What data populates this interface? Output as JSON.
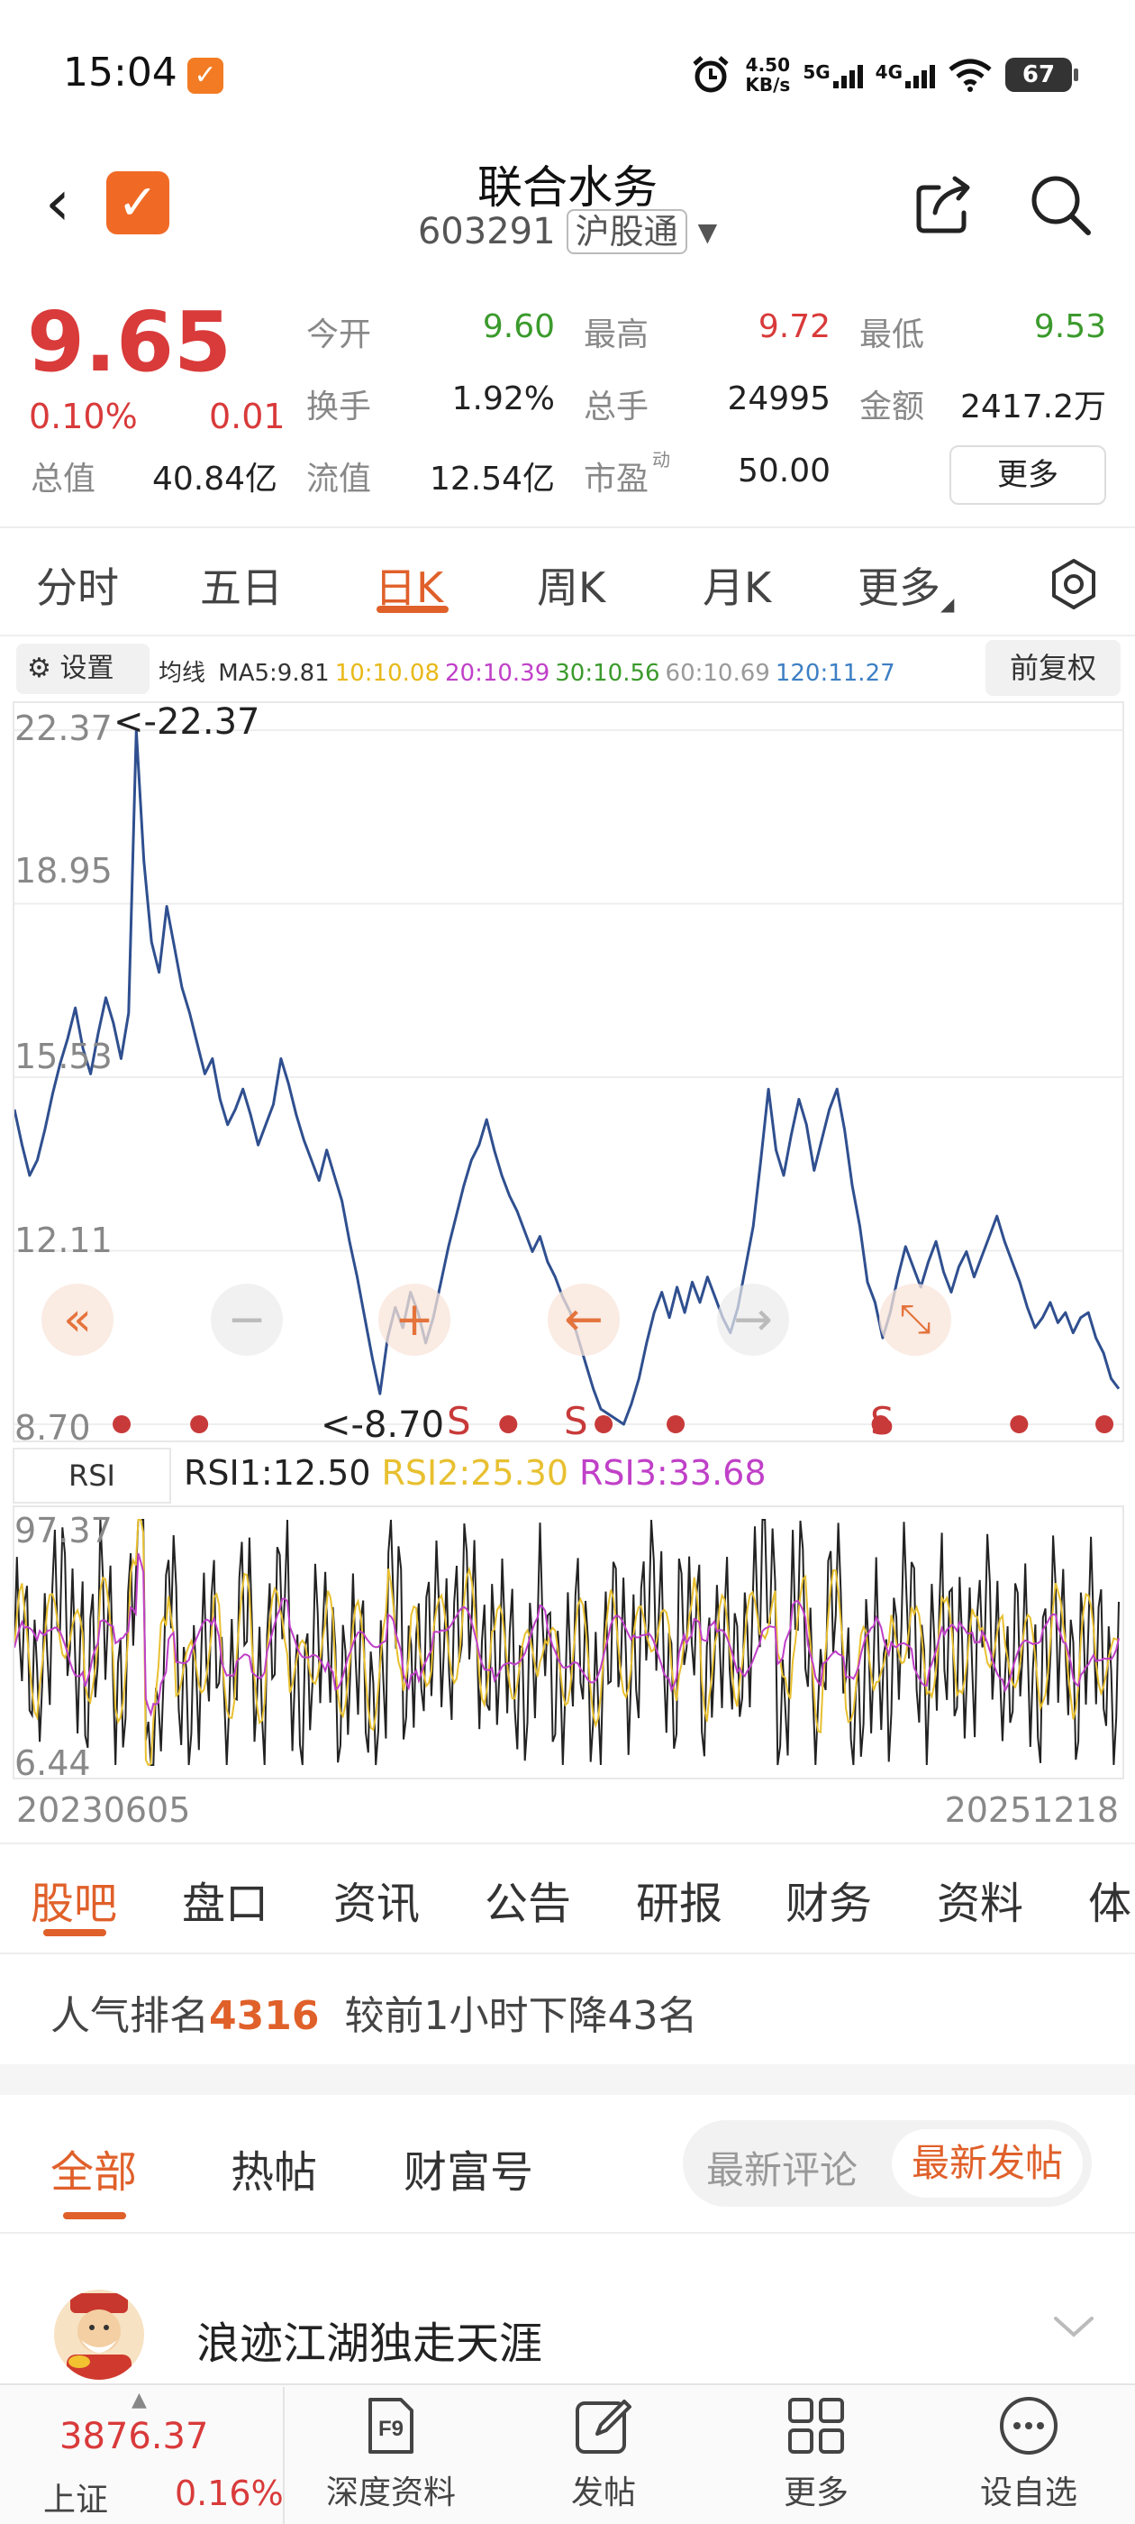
{
  "status_bar": {
    "time": "15:04",
    "net_speed": "4.50",
    "net_unit": "KB/s",
    "sim1": "5G",
    "sim2": "4G",
    "battery": "67",
    "app_icon": "check-icon"
  },
  "header": {
    "name": "联合水务",
    "code": "603291",
    "connect": "沪股通"
  },
  "quote": {
    "price": "9.65",
    "change_pct": "0.10%",
    "change_abs": "0.01",
    "total_value_label": "总值",
    "total_value": "40.84亿",
    "fields": [
      {
        "label": "今开",
        "value": "9.60",
        "color": "#3b9a2c"
      },
      {
        "label": "最高",
        "value": "9.72",
        "color": "#d93a3a"
      },
      {
        "label": "最低",
        "value": "9.53",
        "color": "#3b9a2c"
      },
      {
        "label": "换手",
        "value": "1.92%",
        "color": "#222222"
      },
      {
        "label": "总手",
        "value": "24995",
        "color": "#222222"
      },
      {
        "label": "金额",
        "value": "2417.2万",
        "color": "#222222"
      },
      {
        "label": "流值",
        "value": "12.54亿",
        "color": "#222222"
      },
      {
        "label": "市盈",
        "value": "50.00",
        "color": "#222222"
      }
    ],
    "pe_superscript": "动",
    "more_label": "更多"
  },
  "period_tabs": [
    "分时",
    "五日",
    "日K",
    "周K",
    "月K",
    "更多"
  ],
  "active_period": "日K",
  "indicator_bar": {
    "settings_label": "设置",
    "ma_title": "均线",
    "ma": [
      {
        "text": "MA5:9.81",
        "color": "#333333"
      },
      {
        "text": "10:10.08",
        "color": "#e8b818"
      },
      {
        "text": "20:10.39",
        "color": "#c040c8"
      },
      {
        "text": "30:10.56",
        "color": "#3b9a2c"
      },
      {
        "text": "60:10.69",
        "color": "#999999"
      },
      {
        "text": "120:11.27",
        "color": "#3d7fc4"
      }
    ],
    "adjust_label": "前复权"
  },
  "chart_data": [
    {
      "type": "line",
      "name": "price",
      "y_ticks": [
        "22.37",
        "18.95",
        "15.53",
        "12.11",
        "8.70"
      ],
      "ylim": [
        8.7,
        22.37
      ],
      "max_marker": "<-22.37",
      "min_marker": "<-8.70",
      "x_start": "20230605",
      "x_end": "20251218",
      "line_color": "#2f4f8f",
      "values": [
        14.9,
        14.2,
        13.6,
        13.9,
        14.5,
        15.2,
        15.8,
        16.3,
        16.9,
        16.1,
        15.6,
        16.4,
        17.1,
        16.6,
        15.9,
        16.8,
        22.37,
        19.8,
        18.2,
        17.6,
        18.9,
        18.1,
        17.3,
        16.8,
        16.2,
        15.6,
        15.9,
        15.1,
        14.6,
        14.9,
        15.3,
        14.8,
        14.2,
        14.6,
        15.0,
        15.9,
        15.4,
        14.8,
        14.3,
        13.9,
        13.5,
        14.1,
        13.6,
        13.1,
        12.3,
        11.6,
        10.8,
        10.0,
        9.3,
        10.4,
        11.0,
        10.6,
        11.3,
        10.9,
        10.3,
        10.8,
        11.5,
        12.2,
        12.8,
        13.4,
        13.9,
        14.2,
        14.7,
        14.1,
        13.6,
        13.2,
        12.9,
        12.5,
        12.1,
        12.4,
        11.9,
        11.6,
        11.2,
        10.9,
        10.4,
        9.9,
        9.4,
        9.0,
        8.9,
        8.8,
        8.7,
        9.1,
        9.6,
        10.3,
        10.9,
        11.3,
        10.8,
        11.4,
        10.9,
        11.5,
        11.1,
        11.6,
        11.2,
        10.8,
        10.5,
        11.0,
        11.8,
        12.6,
        13.9,
        15.3,
        14.1,
        13.6,
        14.4,
        15.1,
        14.6,
        13.7,
        14.3,
        14.9,
        15.3,
        14.5,
        13.4,
        12.6,
        11.5,
        11.1,
        10.4,
        10.9,
        11.6,
        12.2,
        11.8,
        11.4,
        11.9,
        12.3,
        11.7,
        11.3,
        11.8,
        12.1,
        11.6,
        12.0,
        12.4,
        12.8,
        12.3,
        11.9,
        11.5,
        11.0,
        10.6,
        10.8,
        11.1,
        10.7,
        10.9,
        10.5,
        10.8,
        10.9,
        10.4,
        10.1,
        9.6,
        9.4
      ],
      "signal_labels": [
        "S",
        "S",
        "S"
      ]
    },
    {
      "type": "line",
      "name": "rsi",
      "y_ticks": [
        "97.37",
        "6.44"
      ],
      "ylim": [
        6.44,
        97.37
      ],
      "legend_box": "RSI",
      "legend": [
        {
          "text": "RSI1:12.50",
          "color": "#222222"
        },
        {
          "text": "RSI2:25.30",
          "color": "#e8c030"
        },
        {
          "text": "RSI3:33.68",
          "color": "#c040c8"
        }
      ]
    }
  ],
  "content_tabs": [
    "股吧",
    "盘口",
    "资讯",
    "公告",
    "研报",
    "财务",
    "资料",
    "体"
  ],
  "active_content_tab": "股吧",
  "ranking": {
    "prefix": "人气排名",
    "number": "4316",
    "suffix": "较前1小时下降43名"
  },
  "sub_tabs": [
    "全部",
    "热帖",
    "财富号"
  ],
  "sort": {
    "latest_comment": "最新评论",
    "latest_post": "最新发帖"
  },
  "post": {
    "author": "浪迹江湖独走天涯"
  },
  "bottom_bar": {
    "index_value": "3876.37",
    "index_name": "上证",
    "index_pct": "0.16%",
    "nav": [
      "深度资料",
      "发帖",
      "更多",
      "设自选"
    ],
    "f9_label": "F9"
  }
}
